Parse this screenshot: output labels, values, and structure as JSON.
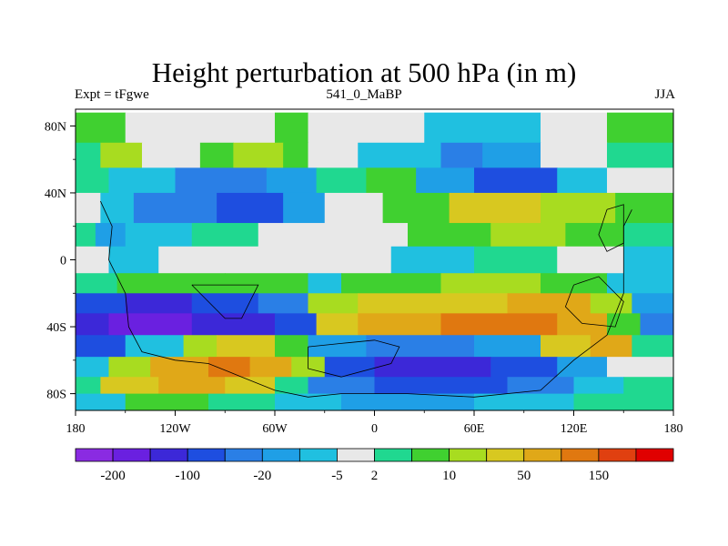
{
  "chart_data": {
    "type": "heatmap",
    "title": "Height perturbation at 500 hPa (in m)",
    "subtitle_left": "Expt = tFgwe",
    "subtitle_center": "541_0_MaBP",
    "subtitle_right": "JJA",
    "x_ticks": [
      {
        "value": -180,
        "label": "180"
      },
      {
        "value": -120,
        "label": "120W"
      },
      {
        "value": -60,
        "label": "60W"
      },
      {
        "value": 0,
        "label": "0"
      },
      {
        "value": 60,
        "label": "60E"
      },
      {
        "value": 120,
        "label": "120E"
      },
      {
        "value": 180,
        "label": "180"
      }
    ],
    "y_ticks": [
      {
        "value": 80,
        "label": "80N"
      },
      {
        "value": 40,
        "label": "40N"
      },
      {
        "value": 0,
        "label": "0"
      },
      {
        "value": -40,
        "label": "40S"
      },
      {
        "value": -80,
        "label": "80S"
      }
    ],
    "xlim": [
      -180,
      180
    ],
    "ylim": [
      -90,
      90
    ],
    "grid": false,
    "colorbar": {
      "placement": "bottom",
      "colors": [
        "#8a2be2",
        "#6a20e0",
        "#3c28d8",
        "#1e4ee0",
        "#2a7fe6",
        "#1f9fe6",
        "#20c0e0",
        "#e8e8e8",
        "#20d890",
        "#40d030",
        "#a8dc20",
        "#d8c820",
        "#e0a818",
        "#e07810",
        "#e04010",
        "#e00000"
      ],
      "labels": [
        "-200",
        "-100",
        "-20",
        "-5",
        "2",
        "10",
        "50",
        "150"
      ]
    },
    "bands": [
      {
        "lat": [
          88,
          70
        ],
        "segments": [
          [
            -180,
            -150,
            "#40d030"
          ],
          [
            -150,
            -60,
            "#e8e8e8"
          ],
          [
            -60,
            -40,
            "#40d030"
          ],
          [
            -40,
            30,
            "#e8e8e8"
          ],
          [
            30,
            100,
            "#20c0e0"
          ],
          [
            100,
            140,
            "#e8e8e8"
          ],
          [
            140,
            180,
            "#40d030"
          ]
        ]
      },
      {
        "lat": [
          70,
          55
        ],
        "segments": [
          [
            -180,
            -165,
            "#20d890"
          ],
          [
            -165,
            -140,
            "#a8dc20"
          ],
          [
            -140,
            -105,
            "#e8e8e8"
          ],
          [
            -105,
            -85,
            "#40d030"
          ],
          [
            -85,
            -55,
            "#a8dc20"
          ],
          [
            -55,
            -40,
            "#40d030"
          ],
          [
            -40,
            -10,
            "#e8e8e8"
          ],
          [
            -10,
            40,
            "#20c0e0"
          ],
          [
            40,
            65,
            "#2a7fe6"
          ],
          [
            65,
            100,
            "#1f9fe6"
          ],
          [
            100,
            140,
            "#e8e8e8"
          ],
          [
            140,
            180,
            "#20d890"
          ]
        ]
      },
      {
        "lat": [
          55,
          40
        ],
        "segments": [
          [
            -180,
            -160,
            "#20d890"
          ],
          [
            -160,
            -120,
            "#20c0e0"
          ],
          [
            -120,
            -65,
            "#2a7fe6"
          ],
          [
            -65,
            -35,
            "#1f9fe6"
          ],
          [
            -35,
            -5,
            "#20d890"
          ],
          [
            -5,
            25,
            "#40d030"
          ],
          [
            25,
            60,
            "#1f9fe6"
          ],
          [
            60,
            110,
            "#1e4ee0"
          ],
          [
            110,
            140,
            "#20c0e0"
          ],
          [
            140,
            180,
            "#e8e8e8"
          ]
        ]
      },
      {
        "lat": [
          40,
          22
        ],
        "segments": [
          [
            -180,
            -165,
            "#e8e8e8"
          ],
          [
            -165,
            -145,
            "#20c0e0"
          ],
          [
            -145,
            -95,
            "#2a7fe6"
          ],
          [
            -95,
            -55,
            "#1e4ee0"
          ],
          [
            -55,
            -30,
            "#1f9fe6"
          ],
          [
            -30,
            5,
            "#e8e8e8"
          ],
          [
            5,
            45,
            "#40d030"
          ],
          [
            45,
            100,
            "#d8c820"
          ],
          [
            100,
            145,
            "#a8dc20"
          ],
          [
            145,
            180,
            "#40d030"
          ]
        ]
      },
      {
        "lat": [
          22,
          8
        ],
        "segments": [
          [
            -180,
            -168,
            "#20d890"
          ],
          [
            -168,
            -150,
            "#1f9fe6"
          ],
          [
            -150,
            -110,
            "#20c0e0"
          ],
          [
            -110,
            -70,
            "#20d890"
          ],
          [
            -70,
            -30,
            "#e8e8e8"
          ],
          [
            -30,
            20,
            "#e8e8e8"
          ],
          [
            20,
            70,
            "#40d030"
          ],
          [
            70,
            115,
            "#a8dc20"
          ],
          [
            115,
            150,
            "#40d030"
          ],
          [
            150,
            180,
            "#20d890"
          ]
        ]
      },
      {
        "lat": [
          8,
          -8
        ],
        "segments": [
          [
            -180,
            -160,
            "#e8e8e8"
          ],
          [
            -160,
            -130,
            "#20c0e0"
          ],
          [
            -130,
            -60,
            "#e8e8e8"
          ],
          [
            -60,
            10,
            "#e8e8e8"
          ],
          [
            10,
            60,
            "#20c0e0"
          ],
          [
            60,
            110,
            "#20d890"
          ],
          [
            110,
            150,
            "#e8e8e8"
          ],
          [
            150,
            180,
            "#20c0e0"
          ]
        ]
      },
      {
        "lat": [
          -8,
          -20
        ],
        "segments": [
          [
            -180,
            -155,
            "#20d890"
          ],
          [
            -155,
            -90,
            "#40d030"
          ],
          [
            -90,
            -40,
            "#40d030"
          ],
          [
            -40,
            -20,
            "#20c0e0"
          ],
          [
            -20,
            40,
            "#40d030"
          ],
          [
            40,
            100,
            "#a8dc20"
          ],
          [
            100,
            140,
            "#40d030"
          ],
          [
            140,
            180,
            "#20c0e0"
          ]
        ]
      },
      {
        "lat": [
          -20,
          -32
        ],
        "segments": [
          [
            -180,
            -150,
            "#1e4ee0"
          ],
          [
            -150,
            -110,
            "#3c28d8"
          ],
          [
            -110,
            -70,
            "#1e4ee0"
          ],
          [
            -70,
            -40,
            "#2a7fe6"
          ],
          [
            -40,
            -10,
            "#a8dc20"
          ],
          [
            -10,
            80,
            "#d8c820"
          ],
          [
            80,
            130,
            "#e0a818"
          ],
          [
            130,
            155,
            "#a8dc20"
          ],
          [
            155,
            180,
            "#1f9fe6"
          ]
        ]
      },
      {
        "lat": [
          -32,
          -45
        ],
        "segments": [
          [
            -180,
            -160,
            "#3c28d8"
          ],
          [
            -160,
            -110,
            "#6a20e0"
          ],
          [
            -110,
            -60,
            "#3c28d8"
          ],
          [
            -60,
            -35,
            "#1e4ee0"
          ],
          [
            -35,
            -10,
            "#d8c820"
          ],
          [
            -10,
            40,
            "#e0a818"
          ],
          [
            40,
            110,
            "#e07810"
          ],
          [
            110,
            140,
            "#e0a818"
          ],
          [
            140,
            160,
            "#40d030"
          ],
          [
            160,
            180,
            "#2a7fe6"
          ]
        ]
      },
      {
        "lat": [
          -45,
          -58
        ],
        "segments": [
          [
            -180,
            -150,
            "#1e4ee0"
          ],
          [
            -150,
            -115,
            "#20c0e0"
          ],
          [
            -115,
            -95,
            "#a8dc20"
          ],
          [
            -95,
            -60,
            "#d8c820"
          ],
          [
            -60,
            -40,
            "#40d030"
          ],
          [
            -40,
            -5,
            "#1f9fe6"
          ],
          [
            -5,
            60,
            "#2a7fe6"
          ],
          [
            60,
            100,
            "#1f9fe6"
          ],
          [
            100,
            130,
            "#d8c820"
          ],
          [
            130,
            155,
            "#e0a818"
          ],
          [
            155,
            180,
            "#20d890"
          ]
        ]
      },
      {
        "lat": [
          -58,
          -70
        ],
        "segments": [
          [
            -180,
            -160,
            "#20c0e0"
          ],
          [
            -160,
            -135,
            "#a8dc20"
          ],
          [
            -135,
            -100,
            "#e0a818"
          ],
          [
            -100,
            -75,
            "#e07810"
          ],
          [
            -75,
            -50,
            "#e0a818"
          ],
          [
            -50,
            -30,
            "#a8dc20"
          ],
          [
            -30,
            0,
            "#1e4ee0"
          ],
          [
            0,
            70,
            "#3c28d8"
          ],
          [
            70,
            110,
            "#1e4ee0"
          ],
          [
            110,
            140,
            "#1f9fe6"
          ],
          [
            140,
            180,
            "#e8e8e8"
          ]
        ]
      },
      {
        "lat": [
          -70,
          -80
        ],
        "segments": [
          [
            -180,
            -165,
            "#20d890"
          ],
          [
            -165,
            -130,
            "#d8c820"
          ],
          [
            -130,
            -90,
            "#e0a818"
          ],
          [
            -90,
            -60,
            "#d8c820"
          ],
          [
            -60,
            -40,
            "#20d890"
          ],
          [
            -40,
            0,
            "#2a7fe6"
          ],
          [
            0,
            80,
            "#1e4ee0"
          ],
          [
            80,
            120,
            "#2a7fe6"
          ],
          [
            120,
            150,
            "#20c0e0"
          ],
          [
            150,
            180,
            "#20d890"
          ]
        ]
      },
      {
        "lat": [
          -80,
          -90
        ],
        "segments": [
          [
            -180,
            -150,
            "#20c0e0"
          ],
          [
            -150,
            -100,
            "#40d030"
          ],
          [
            -100,
            -60,
            "#20d890"
          ],
          [
            -60,
            -20,
            "#20c0e0"
          ],
          [
            -20,
            60,
            "#1f9fe6"
          ],
          [
            60,
            120,
            "#20c0e0"
          ],
          [
            120,
            180,
            "#20d890"
          ]
        ]
      }
    ]
  }
}
